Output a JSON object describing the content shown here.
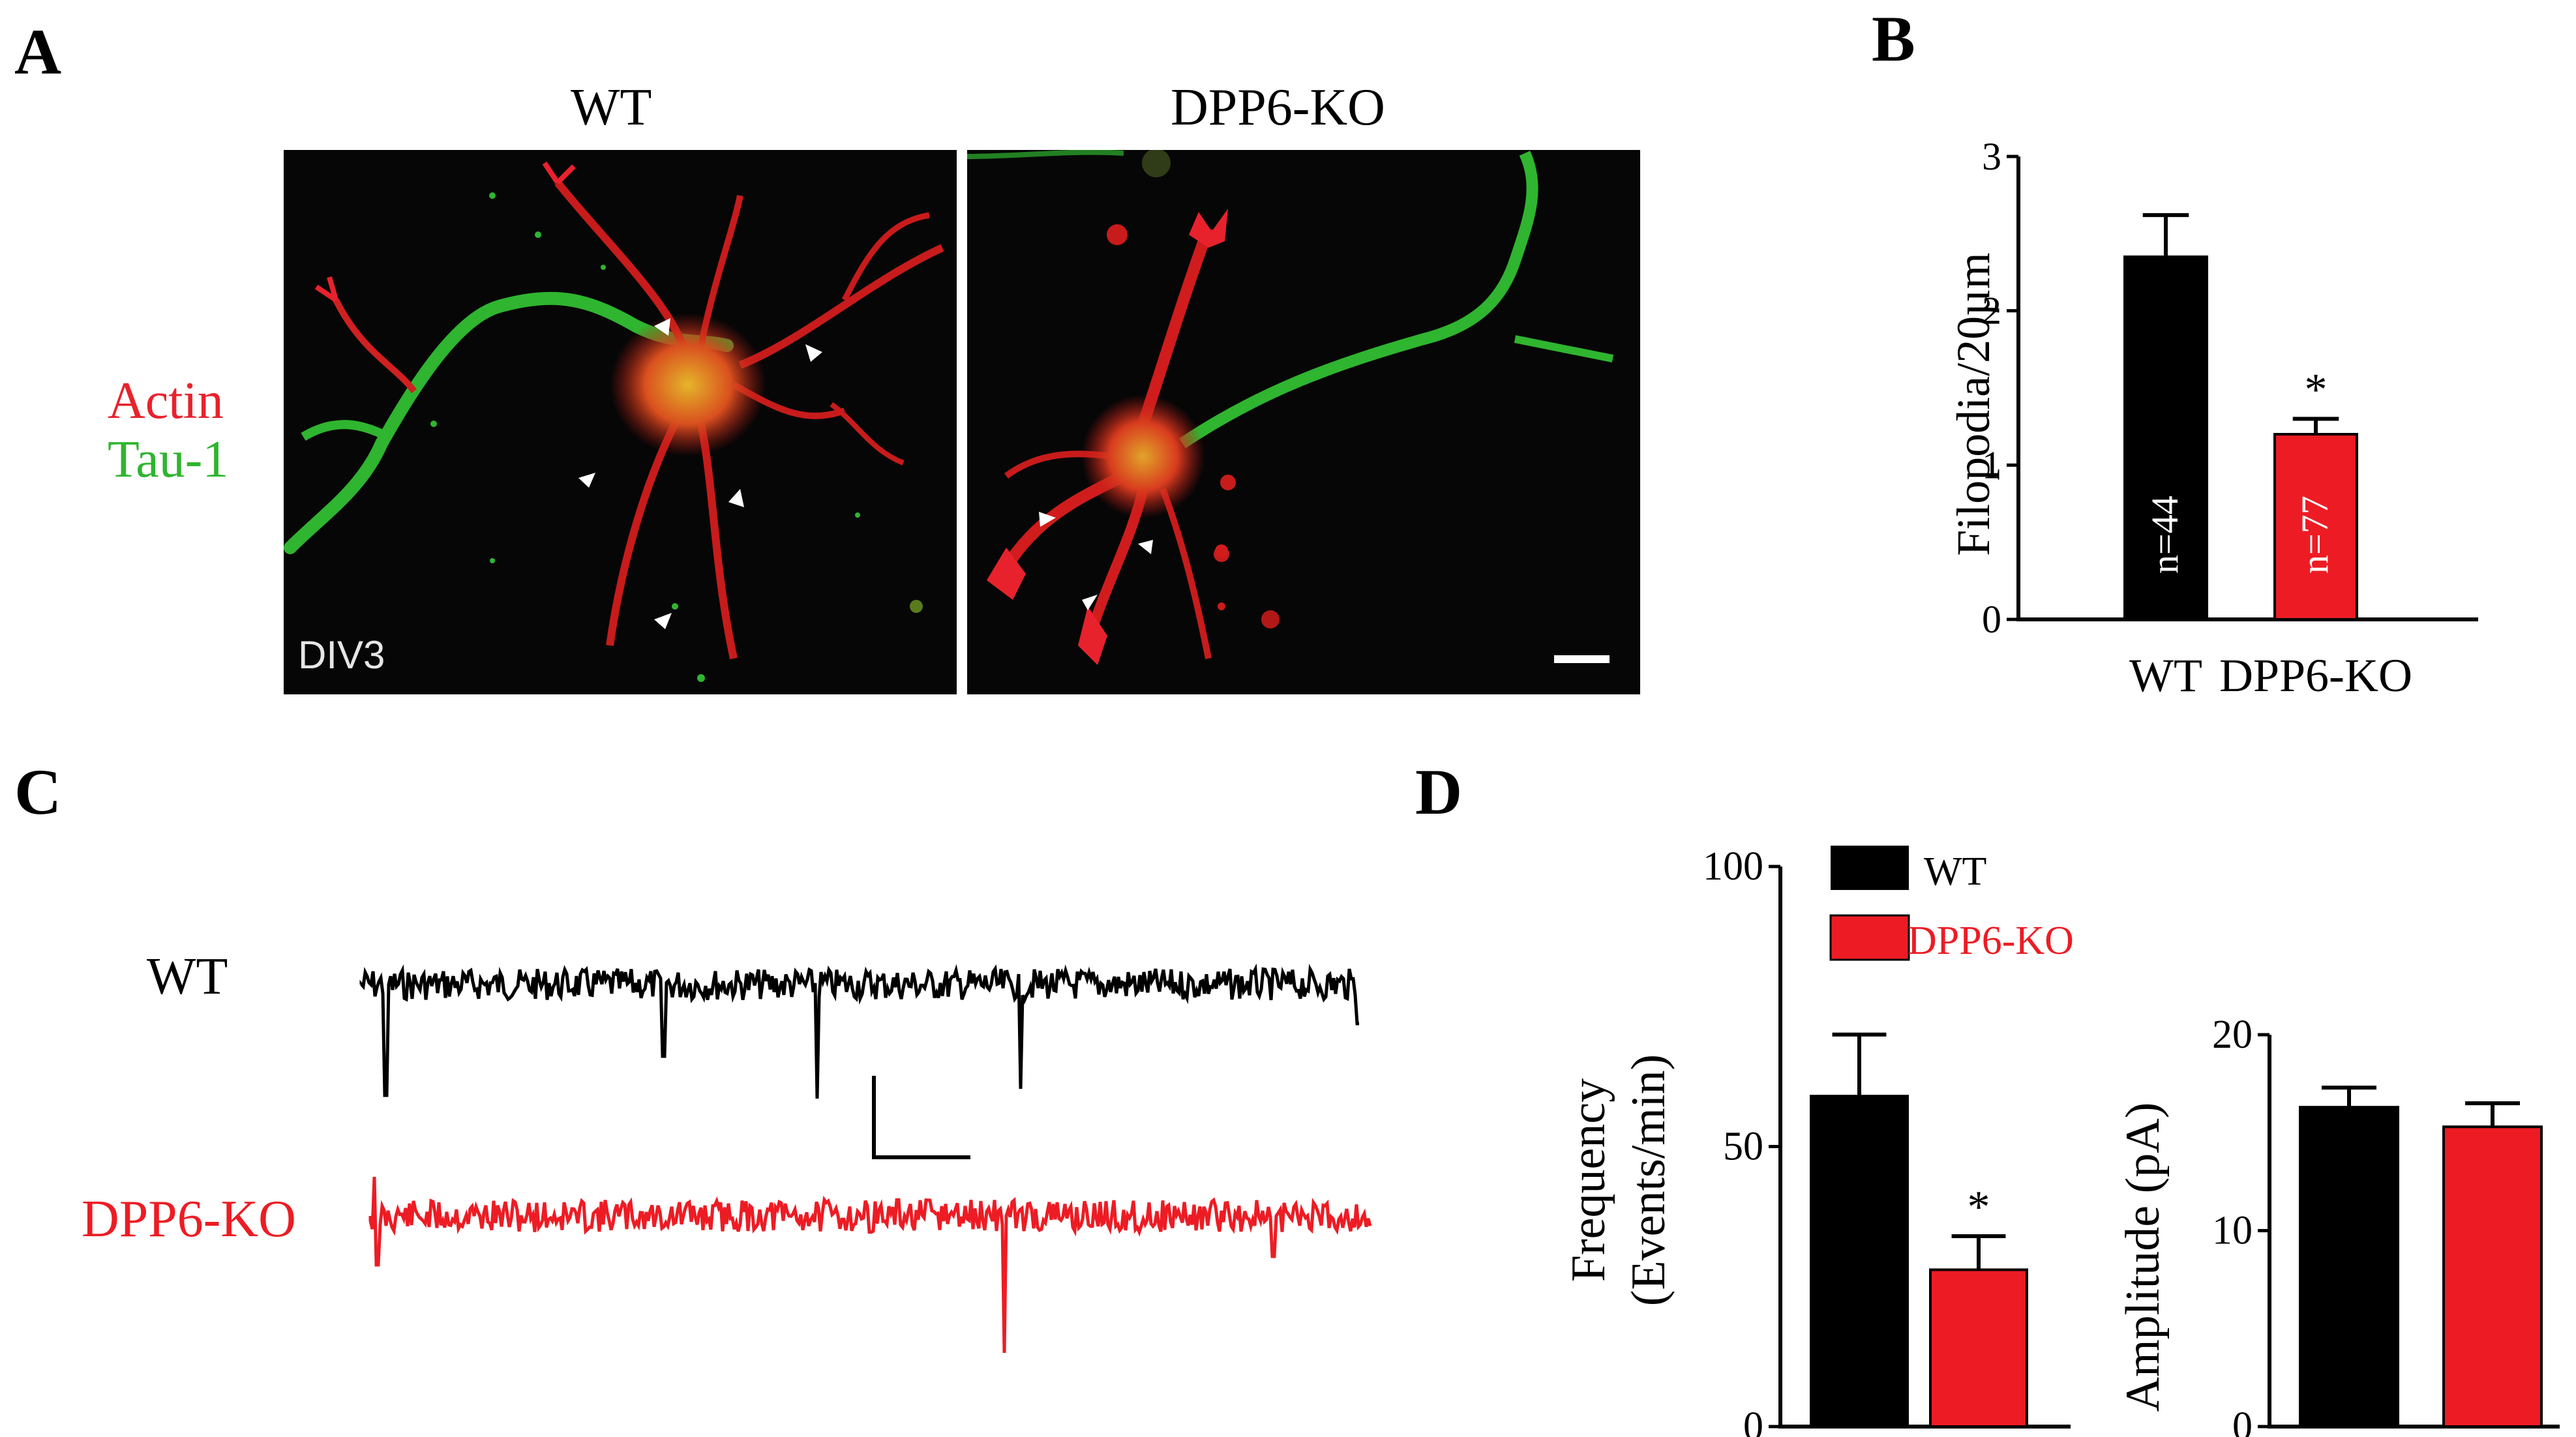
{
  "panels": {
    "a": "A",
    "b": "B",
    "c": "C",
    "d": "D"
  },
  "panel_a": {
    "wt_title": "WT",
    "ko_title": "DPP6-KO",
    "legend_actin": "Actin",
    "legend_tau": "Tau-1",
    "div_label": "DIV3",
    "colors": {
      "actin": "#e8222c",
      "tau": "#2fb52f"
    }
  },
  "panel_c": {
    "wt_label": "WT",
    "ko_label": "DPP6-KO",
    "colors": {
      "wt": "#000000",
      "ko": "#ed1c24"
    }
  },
  "chart_data": [
    {
      "panel": "B",
      "type": "bar",
      "categories": [
        "WT",
        "DPP6-KO"
      ],
      "values": [
        2.35,
        1.2
      ],
      "errors": [
        0.27,
        0.1
      ],
      "bar_labels": [
        "n=44",
        "n=77"
      ],
      "significance": [
        "",
        "*"
      ],
      "ylabel": "Filopodia/20µm",
      "ylim": [
        0,
        3
      ],
      "yticks": [
        "0",
        "1",
        "2",
        "3"
      ],
      "colors": [
        "#000000",
        "#ed1c24"
      ]
    },
    {
      "panel": "D",
      "type": "bar",
      "categories": [
        "WT",
        "DPP6-KO"
      ],
      "values": [
        59,
        28
      ],
      "errors": [
        11,
        6
      ],
      "significance": [
        "",
        "*"
      ],
      "ylabel": [
        "Frequency",
        "(Events/min)"
      ],
      "ylim": [
        0,
        100
      ],
      "yticks": [
        "0",
        "50",
        "100"
      ],
      "legend": [
        "WT",
        "DPP6-KO"
      ],
      "colors": [
        "#000000",
        "#ed1c24"
      ]
    },
    {
      "panel": "D",
      "type": "bar",
      "categories": [
        "WT",
        "DPP6-KO"
      ],
      "values": [
        16.3,
        15.3
      ],
      "errors": [
        1.0,
        1.2
      ],
      "ylabel": "Amplitude (pA)",
      "ylim": [
        0,
        20
      ],
      "yticks": [
        "0",
        "10",
        "20"
      ],
      "colors": [
        "#000000",
        "#ed1c24"
      ]
    }
  ]
}
